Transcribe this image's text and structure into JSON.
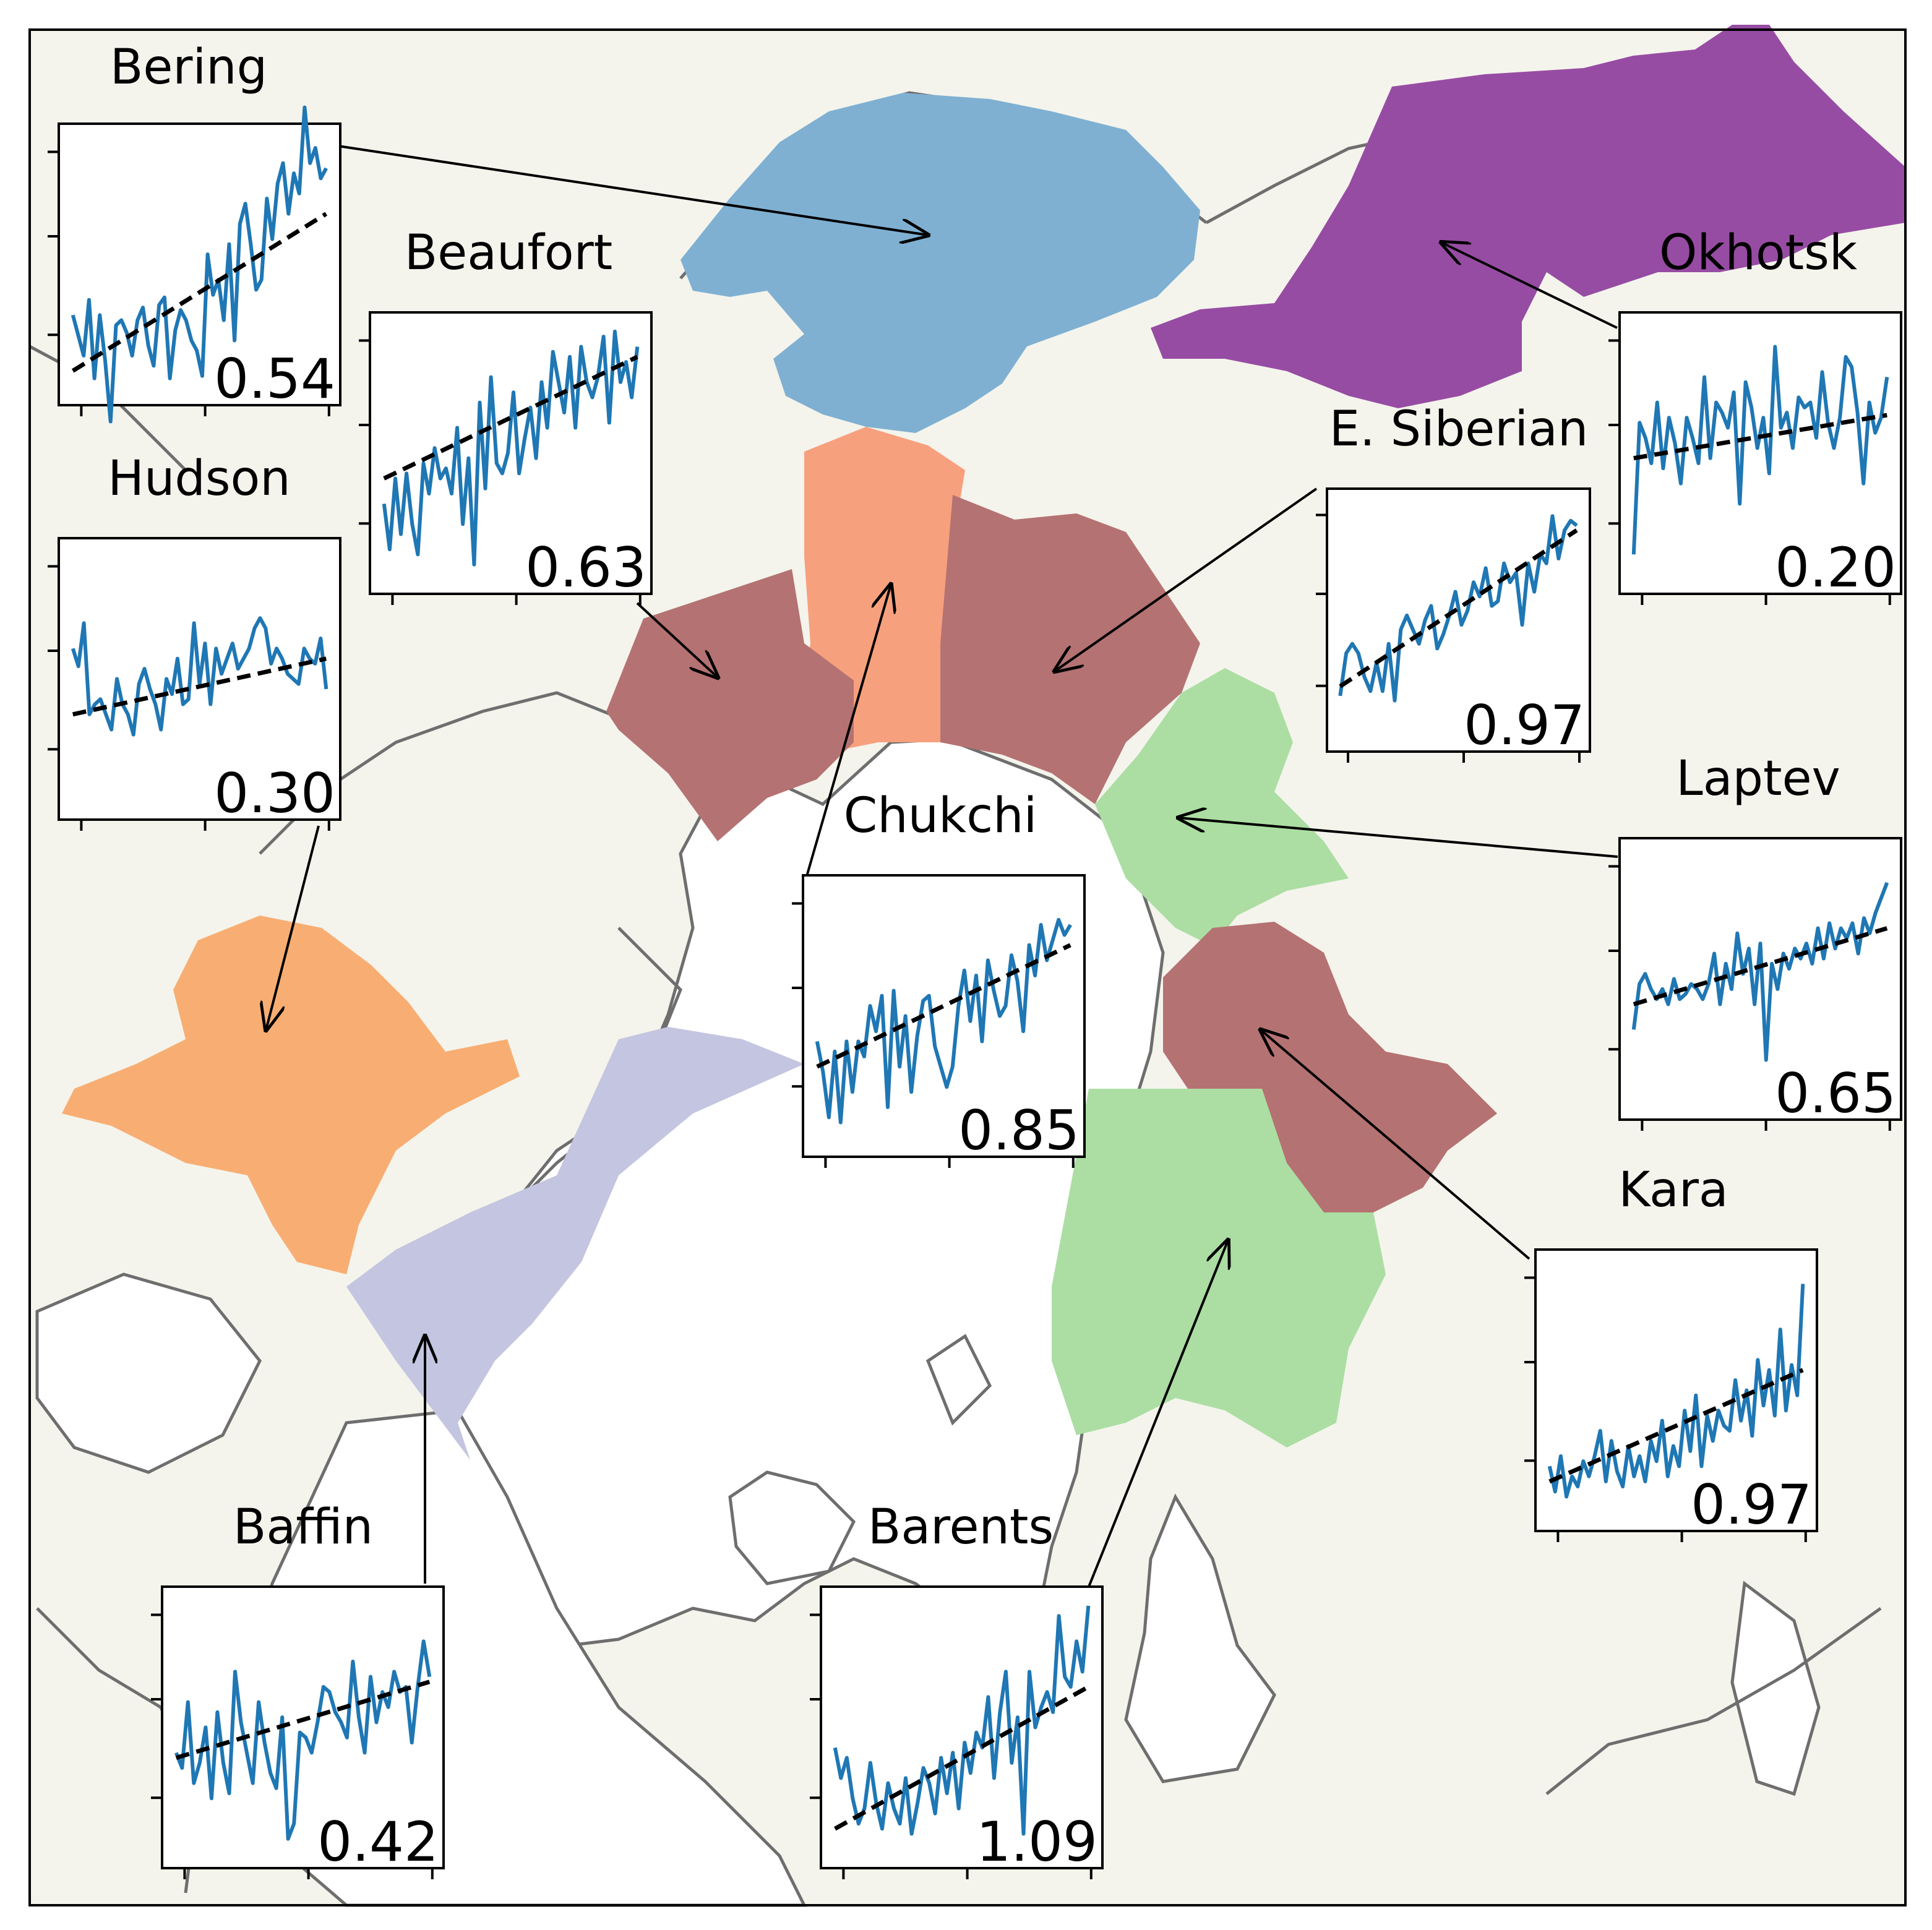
{
  "map": {
    "projection": "north-polar-stereographic",
    "land_color": "#f4f4ec",
    "ocean_color": "#ffffff",
    "coastline_color": "#6e6e6e"
  },
  "legend": null,
  "insets": [
    {
      "region": "Bering",
      "value": "0.54",
      "region_color": "#7fb0d2",
      "series": [
        0.3,
        0.22,
        0.14,
        0.36,
        0.05,
        0.3,
        0.12,
        -0.12,
        0.26,
        0.28,
        0.23,
        0.14,
        0.28,
        0.33,
        0.18,
        0.1,
        0.34,
        0.37,
        0.05,
        0.24,
        0.32,
        0.28,
        0.2,
        0.16,
        0.06,
        0.54,
        0.38,
        0.44,
        0.28,
        0.58,
        0.2,
        0.66,
        0.74,
        0.58,
        0.4,
        0.44,
        0.76,
        0.6,
        0.82,
        0.9,
        0.7,
        0.86,
        0.78,
        1.12,
        0.9,
        0.96,
        0.84,
        0.88
      ],
      "trend": [
        0.08,
        0.7
      ]
    },
    {
      "region": "Beaufort",
      "value": "0.63",
      "region_color": "#b57272",
      "series": [
        0.3,
        0.12,
        0.4,
        0.18,
        0.42,
        0.22,
        0.1,
        0.46,
        0.34,
        0.52,
        0.4,
        0.44,
        0.34,
        0.6,
        0.22,
        0.48,
        0.06,
        0.7,
        0.36,
        0.8,
        0.46,
        0.42,
        0.5,
        0.74,
        0.42,
        0.56,
        0.68,
        0.48,
        0.78,
        0.6,
        0.9,
        0.78,
        0.66,
        0.88,
        0.6,
        0.92,
        0.78,
        0.72,
        0.8,
        0.96,
        0.62,
        0.98,
        0.78,
        0.86,
        0.72,
        0.92
      ],
      "trend": [
        0.4,
        0.88
      ]
    },
    {
      "region": "Hudson",
      "value": "0.30",
      "region_color": "#f8ae73",
      "series": [
        0.62,
        0.55,
        0.72,
        0.36,
        0.4,
        0.42,
        0.36,
        0.3,
        0.5,
        0.4,
        0.36,
        0.28,
        0.48,
        0.54,
        0.46,
        0.4,
        0.3,
        0.5,
        0.44,
        0.58,
        0.4,
        0.42,
        0.72,
        0.48,
        0.64,
        0.4,
        0.62,
        0.52,
        0.58,
        0.64,
        0.54,
        0.58,
        0.62,
        0.7,
        0.74,
        0.7,
        0.56,
        0.62,
        0.58,
        0.52,
        0.5,
        0.48,
        0.62,
        0.58,
        0.56,
        0.66,
        0.46
      ],
      "trend": [
        0.36,
        0.58
      ]
    },
    {
      "region": "Chukchi",
      "value": "0.85",
      "region_color": "#f7a07e",
      "series": [
        0.4,
        0.28,
        0.1,
        0.36,
        0.08,
        0.4,
        0.2,
        0.4,
        0.34,
        0.54,
        0.44,
        0.58,
        0.14,
        0.6,
        0.3,
        0.5,
        0.2,
        0.42,
        0.56,
        0.58,
        0.38,
        0.3,
        0.22,
        0.3,
        0.54,
        0.68,
        0.48,
        0.66,
        0.4,
        0.72,
        0.6,
        0.5,
        0.54,
        0.74,
        0.64,
        0.44,
        0.78,
        0.66,
        0.86,
        0.72,
        0.8,
        0.88,
        0.82,
        0.86
      ],
      "trend": [
        0.3,
        0.78
      ]
    },
    {
      "region": "E. Siberian",
      "value": "0.97",
      "region_color": "#b57272",
      "series": [
        0.18,
        0.36,
        0.4,
        0.36,
        0.26,
        0.2,
        0.32,
        0.2,
        0.4,
        0.16,
        0.46,
        0.52,
        0.46,
        0.4,
        0.5,
        0.56,
        0.38,
        0.44,
        0.52,
        0.62,
        0.48,
        0.54,
        0.66,
        0.6,
        0.72,
        0.56,
        0.58,
        0.74,
        0.66,
        0.7,
        0.48,
        0.74,
        0.62,
        0.78,
        0.74,
        0.94,
        0.76,
        0.88,
        0.92,
        0.9
      ],
      "trend": [
        0.22,
        0.88
      ]
    },
    {
      "region": "Laptev",
      "value": "0.65",
      "region_color": "#acdea3",
      "series": [
        0.3,
        0.48,
        0.52,
        0.46,
        0.42,
        0.46,
        0.4,
        0.5,
        0.42,
        0.44,
        0.48,
        0.46,
        0.42,
        0.48,
        0.6,
        0.4,
        0.56,
        0.46,
        0.68,
        0.52,
        0.62,
        0.4,
        0.64,
        0.18,
        0.56,
        0.46,
        0.6,
        0.54,
        0.62,
        0.58,
        0.64,
        0.56,
        0.7,
        0.58,
        0.72,
        0.62,
        0.7,
        0.66,
        0.72,
        0.6,
        0.74,
        0.68,
        0.76,
        0.82,
        0.88
      ],
      "trend": [
        0.4,
        0.7
      ]
    },
    {
      "region": "Okhotsk",
      "value": "0.20",
      "region_color": "#974ca3",
      "series": [
        0.1,
        0.62,
        0.56,
        0.46,
        0.7,
        0.44,
        0.64,
        0.54,
        0.38,
        0.64,
        0.56,
        0.46,
        0.8,
        0.48,
        0.7,
        0.66,
        0.6,
        0.74,
        0.3,
        0.78,
        0.68,
        0.52,
        0.64,
        0.42,
        0.92,
        0.6,
        0.66,
        0.52,
        0.72,
        0.68,
        0.7,
        0.56,
        0.82,
        0.62,
        0.52,
        0.64,
        0.88,
        0.84,
        0.66,
        0.38,
        0.7,
        0.58,
        0.64,
        0.8
      ],
      "trend": [
        0.48,
        0.65
      ]
    },
    {
      "region": "Kara",
      "value": "0.97",
      "region_color": "#b57272",
      "series": [
        0.2,
        0.1,
        0.24,
        0.08,
        0.16,
        0.12,
        0.22,
        0.16,
        0.24,
        0.34,
        0.14,
        0.3,
        0.18,
        0.12,
        0.28,
        0.16,
        0.24,
        0.14,
        0.3,
        0.22,
        0.38,
        0.16,
        0.28,
        0.2,
        0.42,
        0.26,
        0.48,
        0.2,
        0.4,
        0.3,
        0.42,
        0.36,
        0.34,
        0.54,
        0.38,
        0.5,
        0.32,
        0.62,
        0.44,
        0.58,
        0.4,
        0.74,
        0.42,
        0.6,
        0.48,
        0.92
      ],
      "trend": [
        0.14,
        0.58
      ]
    },
    {
      "region": "Baffin",
      "value": "0.42",
      "region_color": "#c4c5e0",
      "series": [
        0.4,
        0.34,
        0.6,
        0.28,
        0.36,
        0.5,
        0.22,
        0.56,
        0.36,
        0.24,
        0.72,
        0.52,
        0.4,
        0.28,
        0.6,
        0.44,
        0.32,
        0.26,
        0.54,
        0.06,
        0.12,
        0.48,
        0.46,
        0.4,
        0.52,
        0.66,
        0.64,
        0.56,
        0.52,
        0.46,
        0.76,
        0.54,
        0.4,
        0.7,
        0.52,
        0.64,
        0.58,
        0.72,
        0.64,
        0.66,
        0.44,
        0.66,
        0.84,
        0.7
      ],
      "trend": [
        0.38,
        0.68
      ]
    },
    {
      "region": "Barents",
      "value": "1.09",
      "region_color": "#acdea3",
      "series": [
        0.42,
        0.3,
        0.38,
        0.22,
        0.12,
        0.18,
        0.36,
        0.2,
        0.1,
        0.28,
        0.18,
        0.12,
        0.3,
        0.08,
        0.2,
        0.34,
        0.28,
        0.16,
        0.38,
        0.24,
        0.4,
        0.18,
        0.44,
        0.32,
        0.48,
        0.42,
        0.62,
        0.3,
        0.56,
        0.72,
        0.36,
        0.54,
        0.08,
        0.72,
        0.5,
        0.58,
        0.64,
        0.56,
        0.94,
        0.7,
        0.66,
        0.84,
        0.72,
        0.98
      ],
      "trend": [
        0.1,
        0.66
      ]
    }
  ]
}
